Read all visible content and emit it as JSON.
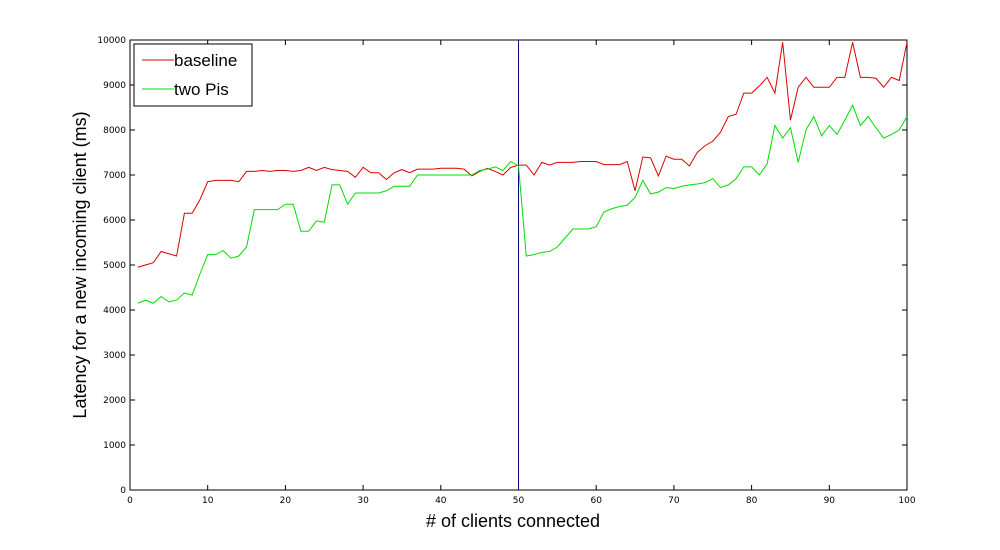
{
  "chart_data": {
    "type": "line",
    "title": "",
    "xlabel": "# of clients connected",
    "ylabel": "Latency for a new incoming client (ms)",
    "xlim": [
      0,
      100
    ],
    "ylim": [
      0,
      10000
    ],
    "x_ticks": [
      "0",
      "10",
      "20",
      "30",
      "40",
      "50",
      "60",
      "70",
      "80",
      "90",
      "100"
    ],
    "y_ticks": [
      "0",
      "1000",
      "2000",
      "3000",
      "4000",
      "5000",
      "6000",
      "7000",
      "8000",
      "9000",
      "10000"
    ],
    "grid": false,
    "legend_position": "top-left",
    "vertical_line_x": 50,
    "vertical_line_color": "#000080",
    "series": [
      {
        "name": "baseline",
        "color": "#dd0000",
        "x": [
          1,
          2,
          3,
          4,
          5,
          6,
          7,
          8,
          9,
          10,
          11,
          12,
          13,
          14,
          15,
          16,
          17,
          18,
          19,
          20,
          21,
          22,
          23,
          24,
          25,
          26,
          27,
          28,
          29,
          30,
          31,
          32,
          33,
          34,
          35,
          36,
          37,
          38,
          39,
          40,
          41,
          42,
          43,
          44,
          45,
          46,
          47,
          48,
          49,
          50,
          51,
          52,
          53,
          54,
          55,
          56,
          57,
          58,
          59,
          60,
          61,
          62,
          63,
          64,
          65,
          66,
          67,
          68,
          69,
          70,
          71,
          72,
          73,
          74,
          75,
          76,
          77,
          78,
          79,
          80,
          81,
          82,
          83,
          84,
          85,
          86,
          87,
          88,
          89,
          90,
          91,
          92,
          93,
          94,
          95,
          96,
          97,
          98,
          99,
          100
        ],
        "values": [
          4950,
          5000,
          5050,
          5300,
          5250,
          5200,
          6150,
          6150,
          6450,
          6850,
          6880,
          6880,
          6880,
          6850,
          7080,
          7080,
          7100,
          7080,
          7100,
          7100,
          7080,
          7100,
          7170,
          7100,
          7170,
          7120,
          7100,
          7080,
          6950,
          7170,
          7050,
          7050,
          6900,
          7050,
          7120,
          7050,
          7130,
          7130,
          7130,
          7150,
          7150,
          7150,
          7130,
          6980,
          7080,
          7150,
          7080,
          7000,
          7170,
          7220,
          7220,
          7000,
          7280,
          7220,
          7280,
          7280,
          7280,
          7300,
          7300,
          7300,
          7230,
          7230,
          7230,
          7300,
          6650,
          7400,
          7380,
          6980,
          7420,
          7350,
          7350,
          7200,
          7500,
          7650,
          7750,
          7950,
          8300,
          8350,
          8820,
          8820,
          8980,
          9170,
          8820,
          9950,
          8220,
          8950,
          9170,
          8950,
          8950,
          8950,
          9170,
          9170,
          9950,
          9170,
          9170,
          9150,
          8950,
          9170,
          9100,
          9950
        ]
      },
      {
        "name": "two Pis",
        "color": "#00dd00",
        "x": [
          1,
          2,
          3,
          4,
          5,
          6,
          7,
          8,
          9,
          10,
          11,
          12,
          13,
          14,
          15,
          16,
          17,
          18,
          19,
          20,
          21,
          22,
          23,
          24,
          25,
          26,
          27,
          28,
          29,
          30,
          31,
          32,
          33,
          34,
          35,
          36,
          37,
          38,
          39,
          40,
          41,
          42,
          43,
          44,
          45,
          46,
          47,
          48,
          49,
          50,
          51,
          52,
          53,
          54,
          55,
          56,
          57,
          58,
          59,
          60,
          61,
          62,
          63,
          64,
          65,
          66,
          67,
          68,
          69,
          70,
          71,
          72,
          73,
          74,
          75,
          76,
          77,
          78,
          79,
          80,
          81,
          82,
          83,
          84,
          85,
          86,
          87,
          88,
          89,
          90,
          91,
          92,
          93,
          94,
          95,
          96,
          97,
          98,
          99,
          100
        ],
        "values": [
          4150,
          4220,
          4150,
          4300,
          4180,
          4220,
          4380,
          4330,
          4800,
          5230,
          5230,
          5320,
          5150,
          5200,
          5400,
          6230,
          6230,
          6230,
          6230,
          6350,
          6350,
          5750,
          5750,
          5980,
          5950,
          6780,
          6780,
          6350,
          6600,
          6600,
          6600,
          6600,
          6650,
          6750,
          6750,
          6750,
          7000,
          7000,
          7000,
          7000,
          7000,
          7000,
          7000,
          7000,
          7100,
          7130,
          7180,
          7100,
          7300,
          7200,
          5200,
          5230,
          5280,
          5300,
          5400,
          5600,
          5800,
          5800,
          5800,
          5850,
          6180,
          6250,
          6300,
          6330,
          6500,
          6880,
          6580,
          6620,
          6720,
          6700,
          6750,
          6780,
          6800,
          6830,
          6920,
          6720,
          6780,
          6920,
          7180,
          7180,
          7000,
          7250,
          8100,
          7820,
          8050,
          7280,
          8000,
          8300,
          7870,
          8100,
          7900,
          8220,
          8550,
          8100,
          8300,
          8050,
          7820,
          7900,
          8000,
          8300
        ]
      }
    ]
  }
}
